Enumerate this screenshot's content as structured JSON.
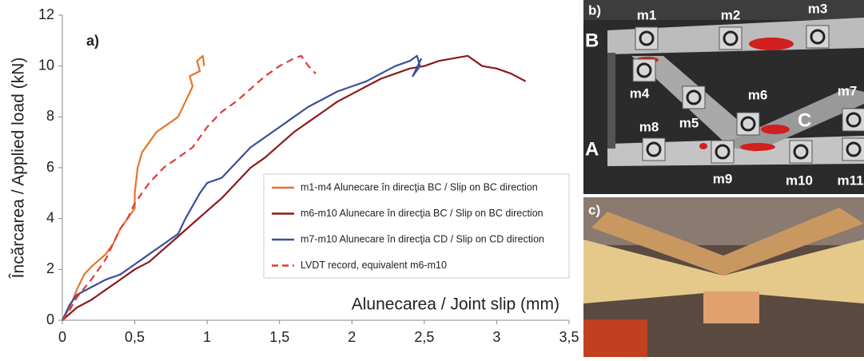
{
  "chart_data": {
    "type": "line",
    "panel_label": "a)",
    "x_label": "Alunecarea / Joint slip (mm)",
    "y_label": "Încărcarea / Applied load (kN)",
    "xlim": [
      0,
      3.5
    ],
    "xticks": [
      0,
      {
        "value": 0.5,
        "label": "0,5"
      },
      1,
      {
        "value": 1.5,
        "label": "1,5"
      },
      2,
      {
        "value": 2.5,
        "label": "2,5"
      },
      3,
      {
        "value": 3.5,
        "label": "3,5"
      }
    ],
    "ylim": [
      0,
      12
    ],
    "yticks": [
      0,
      2,
      4,
      6,
      8,
      10,
      12
    ],
    "legend": "lower right",
    "series": [
      {
        "name": "m1-m4 Alunecare în direcţia BC / Slip on BC direction",
        "color": "#e8742a",
        "dash": false,
        "x": [
          0,
          0.05,
          0.1,
          0.15,
          0.2,
          0.3,
          0.35,
          0.4,
          0.45,
          0.5,
          0.5,
          0.52,
          0.55,
          0.6,
          0.65,
          0.75,
          0.8,
          0.85,
          0.9,
          0.88,
          0.95,
          0.93,
          0.97,
          0.98
        ],
        "values": [
          0,
          0.5,
          1.2,
          1.8,
          2.1,
          2.6,
          3,
          3.6,
          4,
          4.4,
          5,
          6,
          6.6,
          7,
          7.4,
          7.8,
          8,
          8.6,
          9.2,
          9.6,
          9.8,
          10.2,
          10.4,
          10
        ]
      },
      {
        "name": "m6-m10 Alunecare în direcţia BC / Slip on BC direction",
        "color": "#8b1a1a",
        "dash": false,
        "x": [
          0,
          0.1,
          0.2,
          0.3,
          0.4,
          0.5,
          0.6,
          0.7,
          0.8,
          0.9,
          1,
          1.1,
          1.2,
          1.3,
          1.4,
          1.5,
          1.6,
          1.7,
          1.8,
          1.9,
          2,
          2.1,
          2.2,
          2.3,
          2.4,
          2.5,
          2.6,
          2.7,
          2.8,
          2.9,
          3,
          3.1,
          3.2
        ],
        "values": [
          0,
          0.5,
          0.8,
          1.2,
          1.6,
          2,
          2.3,
          2.8,
          3.3,
          3.8,
          4.3,
          4.8,
          5.4,
          6,
          6.4,
          6.9,
          7.4,
          7.8,
          8.2,
          8.6,
          8.9,
          9.2,
          9.5,
          9.7,
          9.9,
          10,
          10.2,
          10.3,
          10.4,
          10,
          9.9,
          9.7,
          9.4
        ]
      },
      {
        "name": "m7-m10 Alunecare în direcţia CD / Slip on CD direction",
        "color": "#3a4f9a",
        "dash": false,
        "x": [
          0,
          0.05,
          0.1,
          0.2,
          0.3,
          0.4,
          0.5,
          0.6,
          0.7,
          0.8,
          0.85,
          0.9,
          0.95,
          1,
          1.1,
          1.2,
          1.3,
          1.4,
          1.5,
          1.6,
          1.7,
          1.8,
          1.9,
          2,
          2.1,
          2.2,
          2.3,
          2.4,
          2.45,
          2.47,
          2.42,
          2.48
        ],
        "values": [
          0,
          0.6,
          1,
          1.3,
          1.6,
          1.8,
          2.2,
          2.6,
          3,
          3.4,
          4,
          4.5,
          5,
          5.4,
          5.6,
          6.2,
          6.8,
          7.2,
          7.6,
          8,
          8.4,
          8.7,
          9,
          9.2,
          9.4,
          9.7,
          10,
          10.2,
          10.4,
          10,
          9.6,
          10.3
        ]
      },
      {
        "name": "LVDT record, equivalent m6-m10",
        "color": "#e03a3a",
        "dash": true,
        "x": [
          0,
          0.05,
          0.1,
          0.2,
          0.3,
          0.35,
          0.4,
          0.45,
          0.5,
          0.55,
          0.6,
          0.7,
          0.8,
          0.9,
          1,
          1.1,
          1.2,
          1.3,
          1.4,
          1.5,
          1.6,
          1.65,
          1.7,
          1.75
        ],
        "values": [
          0,
          0.4,
          0.9,
          1.6,
          2.4,
          3,
          3.6,
          4,
          4.6,
          5,
          5.4,
          6,
          6.4,
          6.8,
          7.6,
          8.2,
          8.6,
          9.1,
          9.6,
          10,
          10.3,
          10.4,
          10,
          9.7
        ]
      }
    ]
  },
  "photos": {
    "b": {
      "label": "b)",
      "markers": [
        "m1",
        "m2",
        "m3",
        "m4",
        "m5",
        "m6",
        "m7",
        "m8",
        "m9",
        "m10",
        "m11"
      ],
      "points": [
        "A",
        "B",
        "C"
      ]
    },
    "c": {
      "label": "c)"
    }
  }
}
